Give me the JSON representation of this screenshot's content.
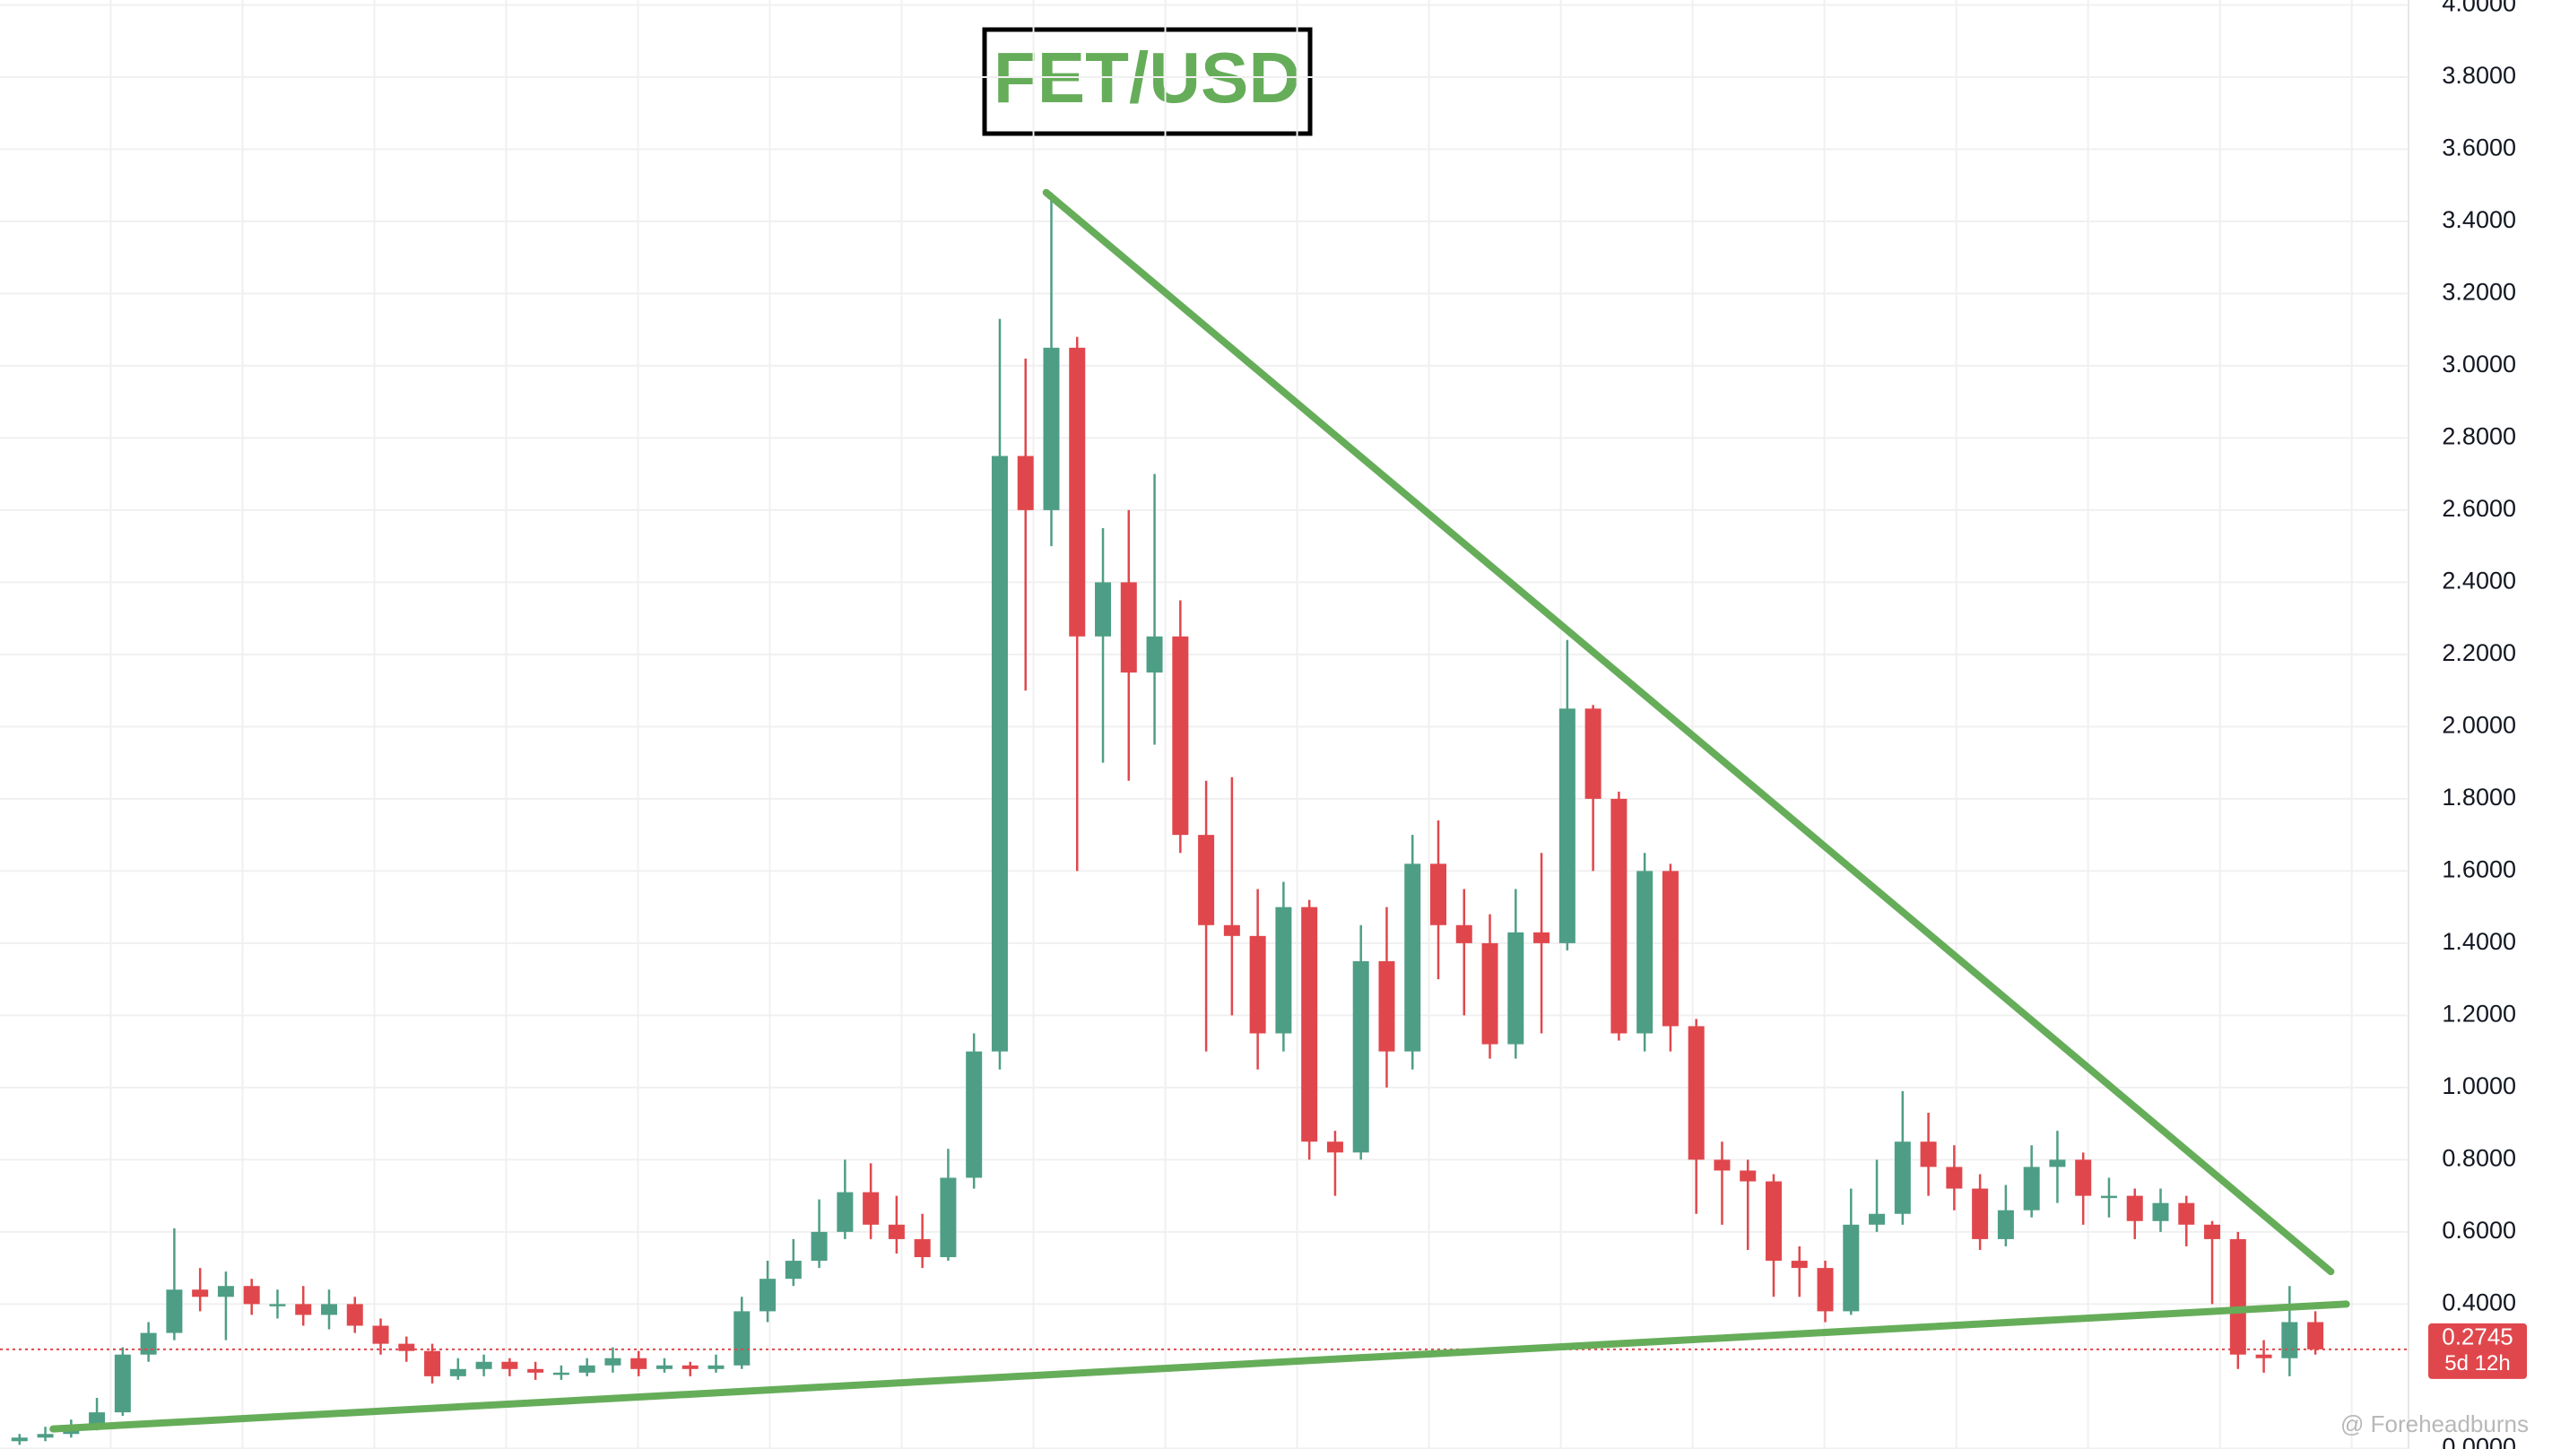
{
  "chart_data": {
    "type": "candlestick",
    "title": "FET/USD",
    "up_color": "#4e9e86",
    "down_color": "#e0474c",
    "open": [
      0.02,
      0.03,
      0.04,
      0.06,
      0.1,
      0.26,
      0.32,
      0.44,
      0.42,
      0.45,
      0.4,
      0.4,
      0.37,
      0.4,
      0.34,
      0.29,
      0.27,
      0.2,
      0.22,
      0.24,
      0.22,
      0.21,
      0.21,
      0.23,
      0.25,
      0.22,
      0.23,
      0.22,
      0.23,
      0.38,
      0.47,
      0.52,
      0.6,
      0.71,
      0.62,
      0.58,
      0.53,
      0.75,
      1.1,
      2.75,
      2.6,
      3.05,
      2.25,
      2.4,
      2.15,
      2.25,
      1.7,
      1.45,
      1.42,
      1.15,
      1.5,
      0.85,
      0.82,
      1.35,
      1.1,
      1.62,
      1.45,
      1.4,
      1.12,
      1.43,
      1.4,
      2.05,
      1.8,
      1.15,
      1.6,
      1.17,
      0.8,
      0.77,
      0.74,
      0.52,
      0.5,
      0.38,
      0.62,
      0.65,
      0.85,
      0.78,
      0.72,
      0.58,
      0.66,
      0.78,
      0.8,
      0.7,
      0.7,
      0.63,
      0.68,
      0.62,
      0.58,
      0.26,
      0.25,
      0.35
    ],
    "high": [
      0.04,
      0.06,
      0.08,
      0.14,
      0.28,
      0.35,
      0.61,
      0.5,
      0.49,
      0.47,
      0.44,
      0.45,
      0.44,
      0.42,
      0.36,
      0.31,
      0.29,
      0.25,
      0.26,
      0.25,
      0.24,
      0.23,
      0.25,
      0.28,
      0.27,
      0.25,
      0.24,
      0.26,
      0.42,
      0.52,
      0.58,
      0.69,
      0.8,
      0.79,
      0.7,
      0.65,
      0.83,
      1.15,
      3.13,
      3.02,
      3.48,
      3.08,
      2.55,
      2.6,
      2.7,
      2.35,
      1.85,
      1.86,
      1.55,
      1.57,
      1.52,
      0.88,
      1.45,
      1.5,
      1.7,
      1.74,
      1.55,
      1.48,
      1.55,
      1.65,
      2.24,
      2.06,
      1.82,
      1.65,
      1.62,
      1.19,
      0.85,
      0.8,
      0.76,
      0.56,
      0.52,
      0.72,
      0.8,
      0.99,
      0.93,
      0.84,
      0.76,
      0.73,
      0.84,
      0.88,
      0.82,
      0.75,
      0.72,
      0.72,
      0.7,
      0.63,
      0.6,
      0.3,
      0.45,
      0.38
    ],
    "low": [
      0.01,
      0.02,
      0.03,
      0.05,
      0.09,
      0.24,
      0.3,
      0.38,
      0.3,
      0.37,
      0.36,
      0.34,
      0.33,
      0.32,
      0.26,
      0.24,
      0.18,
      0.19,
      0.2,
      0.2,
      0.19,
      0.19,
      0.2,
      0.21,
      0.2,
      0.21,
      0.2,
      0.21,
      0.22,
      0.35,
      0.45,
      0.5,
      0.58,
      0.58,
      0.54,
      0.5,
      0.52,
      0.72,
      1.05,
      2.1,
      2.5,
      1.6,
      1.9,
      1.85,
      1.95,
      1.65,
      1.1,
      1.2,
      1.05,
      1.1,
      0.8,
      0.7,
      0.8,
      1.0,
      1.05,
      1.3,
      1.2,
      1.08,
      1.08,
      1.15,
      1.38,
      1.6,
      1.13,
      1.1,
      1.1,
      0.65,
      0.62,
      0.55,
      0.42,
      0.42,
      0.35,
      0.37,
      0.6,
      0.62,
      0.7,
      0.66,
      0.55,
      0.56,
      0.64,
      0.68,
      0.62,
      0.64,
      0.58,
      0.6,
      0.56,
      0.4,
      0.22,
      0.21,
      0.2,
      0.26
    ],
    "close": [
      0.03,
      0.04,
      0.06,
      0.1,
      0.26,
      0.32,
      0.44,
      0.42,
      0.45,
      0.4,
      0.4,
      0.37,
      0.4,
      0.34,
      0.29,
      0.27,
      0.2,
      0.22,
      0.24,
      0.22,
      0.21,
      0.21,
      0.23,
      0.25,
      0.22,
      0.23,
      0.22,
      0.23,
      0.38,
      0.47,
      0.52,
      0.6,
      0.71,
      0.62,
      0.58,
      0.53,
      0.75,
      1.1,
      2.75,
      2.6,
      3.05,
      2.25,
      2.4,
      2.15,
      2.25,
      1.7,
      1.45,
      1.42,
      1.15,
      1.5,
      0.85,
      0.82,
      1.35,
      1.1,
      1.62,
      1.45,
      1.4,
      1.12,
      1.43,
      1.4,
      2.05,
      1.8,
      1.15,
      1.6,
      1.17,
      0.8,
      0.77,
      0.74,
      0.52,
      0.5,
      0.38,
      0.62,
      0.65,
      0.85,
      0.78,
      0.72,
      0.58,
      0.66,
      0.78,
      0.8,
      0.7,
      0.7,
      0.63,
      0.68,
      0.62,
      0.58,
      0.26,
      0.25,
      0.35,
      0.2745
    ],
    "ylim": [
      0,
      4
    ],
    "yticks": [
      {
        "value": 0,
        "label": "0.0000"
      },
      {
        "value": 0.4,
        "label": "0.4000"
      },
      {
        "value": 0.6,
        "label": "0.6000"
      },
      {
        "value": 0.8,
        "label": "0.8000"
      },
      {
        "value": 1,
        "label": "1.0000"
      },
      {
        "value": 1.2,
        "label": "1.2000"
      },
      {
        "value": 1.4,
        "label": "1.4000"
      },
      {
        "value": 1.6,
        "label": "1.6000"
      },
      {
        "value": 1.8,
        "label": "1.8000"
      },
      {
        "value": 2,
        "label": "2.0000"
      },
      {
        "value": 2.2,
        "label": "2.2000"
      },
      {
        "value": 2.4,
        "label": "2.4000"
      },
      {
        "value": 2.6,
        "label": "2.6000"
      },
      {
        "value": 2.8,
        "label": "2.8000"
      },
      {
        "value": 3,
        "label": "3.0000"
      },
      {
        "value": 3.2,
        "label": "3.2000"
      },
      {
        "value": 3.4,
        "label": "3.4000"
      },
      {
        "value": 3.6,
        "label": "3.6000"
      },
      {
        "value": 3.8,
        "label": "3.8000"
      },
      {
        "value": 4,
        "label": "4.0000"
      }
    ],
    "grid": true,
    "trendlines": [
      {
        "color": "#66ad5a",
        "x": [
          39.8,
          89.6
        ],
        "y": [
          3.48,
          0.49
        ]
      },
      {
        "color": "#66ad5a",
        "x": [
          1.3,
          90.2
        ],
        "y": [
          0.054,
          0.4
        ]
      }
    ],
    "last_price": 0.2745,
    "countdown": "5d 12h",
    "watermark": "@ Foreheadburns"
  }
}
